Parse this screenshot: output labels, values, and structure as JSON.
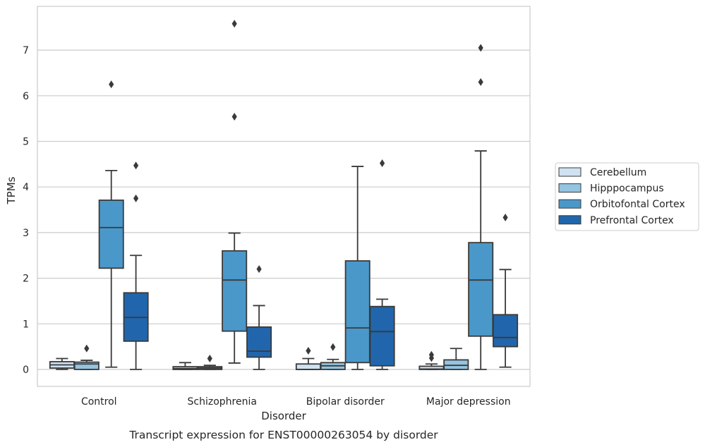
{
  "chart_data": {
    "type": "box",
    "caption": "Transcript expression for ENST00000263054 by disorder",
    "xlabel": "Disorder",
    "ylabel": "TPMs",
    "ylim": [
      -0.35,
      7.95
    ],
    "yticks": [
      0,
      1,
      2,
      3,
      4,
      5,
      6,
      7
    ],
    "grid": "horizontal",
    "legend_position": "right",
    "categories": [
      "Control",
      "Schizophrenia",
      "Bipolar disorder",
      "Major depression"
    ],
    "series": [
      {
        "name": "Cerebellum",
        "color": "#d0e1f2",
        "boxes": [
          {
            "whislo": 0.0,
            "q1": 0.03,
            "med": 0.1,
            "q3": 0.17,
            "whishi": 0.24,
            "fliers": []
          },
          {
            "whislo": 0.0,
            "q1": 0.0,
            "med": 0.02,
            "q3": 0.06,
            "whishi": 0.15,
            "fliers": []
          },
          {
            "whislo": 0.0,
            "q1": 0.0,
            "med": 0.0,
            "q3": 0.12,
            "whishi": 0.24,
            "fliers": [
              0.41
            ]
          },
          {
            "whislo": 0.0,
            "q1": 0.0,
            "med": 0.01,
            "q3": 0.07,
            "whishi": 0.12,
            "fliers": [
              0.25,
              0.32
            ]
          }
        ]
      },
      {
        "name": "Hipppocampus",
        "color": "#94c4df",
        "boxes": [
          {
            "whislo": 0.0,
            "q1": 0.0,
            "med": 0.12,
            "q3": 0.16,
            "whishi": 0.2,
            "fliers": [
              0.46
            ]
          },
          {
            "whislo": 0.0,
            "q1": 0.0,
            "med": 0.03,
            "q3": 0.06,
            "whishi": 0.09,
            "fliers": [
              0.24
            ]
          },
          {
            "whislo": 0.0,
            "q1": 0.0,
            "med": 0.08,
            "q3": 0.15,
            "whishi": 0.22,
            "fliers": [
              0.49
            ]
          },
          {
            "whislo": 0.0,
            "q1": 0.0,
            "med": 0.09,
            "q3": 0.21,
            "whishi": 0.46,
            "fliers": []
          }
        ]
      },
      {
        "name": "Orbitofontal Cortex",
        "color": "#4a98c9",
        "boxes": [
          {
            "whislo": 0.05,
            "q1": 2.22,
            "med": 3.11,
            "q3": 3.71,
            "whishi": 4.36,
            "fliers": [
              6.25
            ]
          },
          {
            "whislo": 0.14,
            "q1": 0.84,
            "med": 1.96,
            "q3": 2.6,
            "whishi": 2.99,
            "fliers": [
              5.54,
              7.58
            ]
          },
          {
            "whislo": 0.0,
            "q1": 0.15,
            "med": 0.91,
            "q3": 2.38,
            "whishi": 4.45,
            "fliers": []
          },
          {
            "whislo": 0.0,
            "q1": 0.73,
            "med": 1.96,
            "q3": 2.78,
            "whishi": 4.79,
            "fliers": [
              6.3,
              7.05
            ]
          }
        ]
      },
      {
        "name": "Prefrontal Cortex",
        "color": "#2166ac",
        "boxes": [
          {
            "whislo": 0.0,
            "q1": 0.62,
            "med": 1.14,
            "q3": 1.68,
            "whishi": 2.5,
            "fliers": [
              3.75,
              4.47
            ]
          },
          {
            "whislo": 0.0,
            "q1": 0.27,
            "med": 0.4,
            "q3": 0.93,
            "whishi": 1.4,
            "fliers": [
              2.2
            ]
          },
          {
            "whislo": 0.0,
            "q1": 0.08,
            "med": 0.83,
            "q3": 1.38,
            "whishi": 1.54,
            "fliers": [
              4.52
            ]
          },
          {
            "whislo": 0.05,
            "q1": 0.5,
            "med": 0.7,
            "q3": 1.2,
            "whishi": 2.19,
            "fliers": [
              3.33
            ]
          }
        ]
      }
    ]
  }
}
